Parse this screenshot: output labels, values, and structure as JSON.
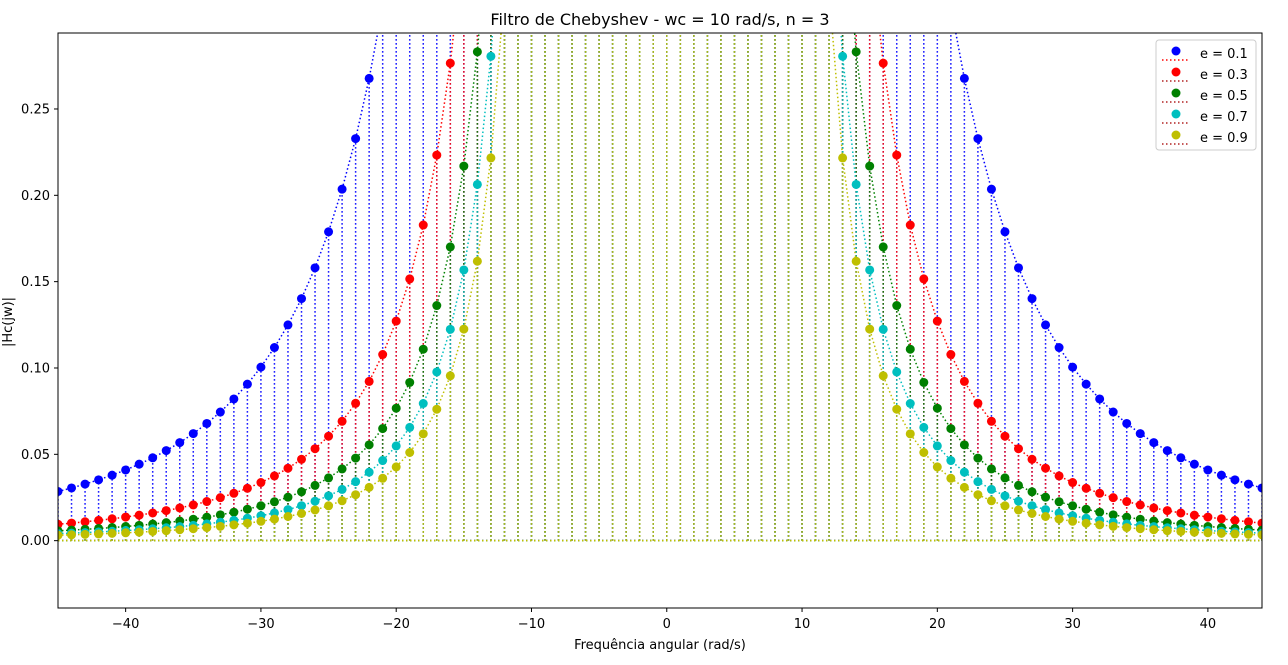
{
  "window": {
    "title": ""
  },
  "chart_data": {
    "type": "scatter",
    "title": "Filtro de Chebyshev - wc = 10 rad/s, n = 3",
    "xlabel": "Frequência angular (rad/s)",
    "ylabel": "|Hc(jw)|",
    "xlim": [
      -45,
      44
    ],
    "ylim": [
      -0.039,
      0.294
    ],
    "xticks": [
      -40,
      -30,
      -20,
      -10,
      0,
      10,
      20,
      30,
      40
    ],
    "xtick_labels": [
      "−40",
      "−30",
      "−20",
      "−10",
      "0",
      "10",
      "20",
      "30",
      "40"
    ],
    "yticks": [
      0.0,
      0.05,
      0.1,
      0.15,
      0.2,
      0.25
    ],
    "ytick_labels": [
      "0.00",
      "0.05",
      "0.10",
      "0.15",
      "0.20",
      "0.25"
    ],
    "grid": false,
    "legend_position": "top-right",
    "style": "stem plot (dotted vertical stems from 0, markers at magnitude, dotted envelope line)",
    "model": "|H(jw)| = 1/sqrt(1 + e^2 * T3(w/10)^2), T3(x)=4x^3-3x, sampled at integer w from -45 to 44",
    "x_range": {
      "start": -45,
      "stop": 44,
      "step": 1
    },
    "series": [
      {
        "name": "e = 0.1",
        "epsilon": 0.1,
        "color": "#0000ff"
      },
      {
        "name": "e = 0.3",
        "epsilon": 0.3,
        "color": "#ff0000"
      },
      {
        "name": "e = 0.5",
        "epsilon": 0.5,
        "color": "#008000"
      },
      {
        "name": "e = 0.7",
        "epsilon": 0.7,
        "color": "#00bfbf"
      },
      {
        "name": "e = 0.9",
        "epsilon": 0.9,
        "color": "#bfbf00"
      }
    ]
  }
}
